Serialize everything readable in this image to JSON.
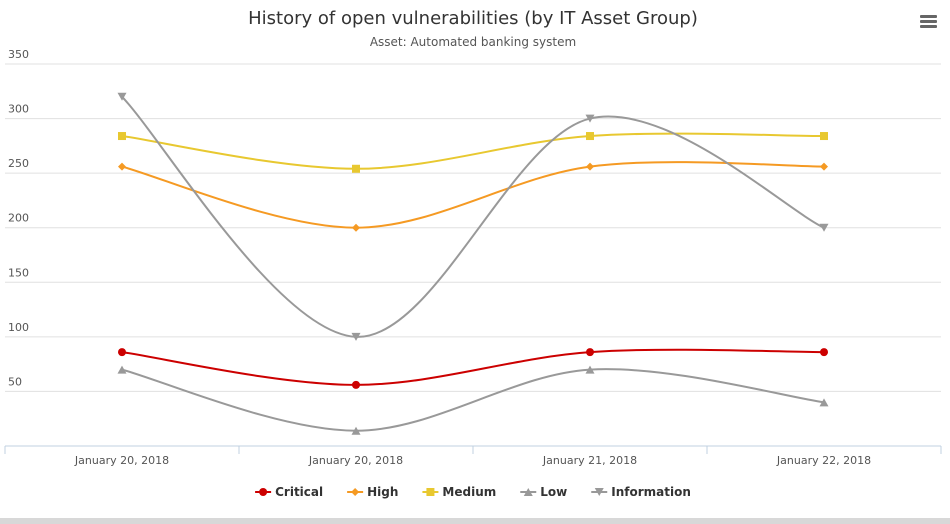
{
  "chart_data": {
    "type": "line",
    "title": "History of open vulnerabilities (by IT Asset Group)",
    "subtitle": "Asset: Automated banking system",
    "categories": [
      "January 20, 2018",
      "January 20, 2018",
      "January 21, 2018",
      "January 22, 2018"
    ],
    "ylim": [
      0,
      350
    ],
    "yticks": [
      50,
      100,
      150,
      200,
      250,
      300,
      350
    ],
    "grid": true,
    "legend_position": "bottom-center",
    "series": [
      {
        "name": "Critical",
        "color": "#cc0000",
        "marker": "circle",
        "values": [
          86,
          56,
          86,
          86
        ]
      },
      {
        "name": "High",
        "color": "#f59a23",
        "marker": "diamond",
        "values": [
          256,
          200,
          256,
          256
        ]
      },
      {
        "name": "Medium",
        "color": "#e8c830",
        "marker": "square",
        "values": [
          284,
          254,
          284,
          284
        ]
      },
      {
        "name": "Low",
        "color": "#999999",
        "marker": "triangle-up",
        "values": [
          70,
          14,
          70,
          40
        ]
      },
      {
        "name": "Information",
        "color": "#999999",
        "marker": "triangle-down",
        "values": [
          320,
          100,
          300,
          200
        ]
      }
    ]
  },
  "toolbar": {
    "menu_icon": "hamburger-menu-icon"
  }
}
